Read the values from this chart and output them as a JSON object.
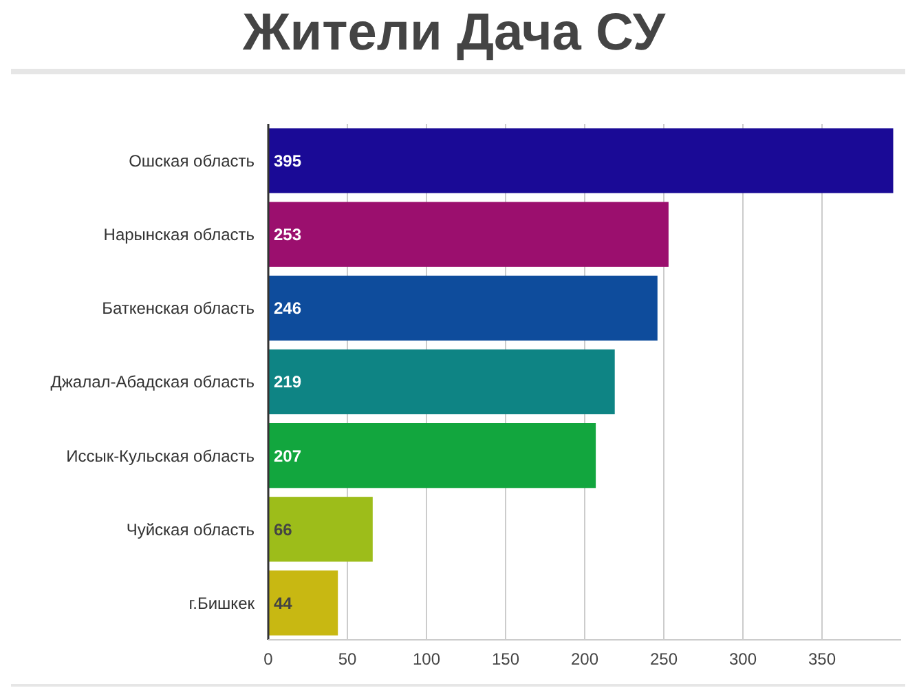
{
  "chart_data": {
    "type": "bar",
    "orientation": "horizontal",
    "title": "Жители Дача СУ",
    "categories": [
      "Ошская область",
      "Нарынская область",
      "Баткенская область",
      "Джалал-Абадская область",
      "Иссык-Кульская область",
      "Чуйская область",
      "г.Бишкек"
    ],
    "values": [
      395,
      253,
      246,
      219,
      207,
      66,
      44
    ],
    "colors": [
      "#1a0a96",
      "#9b0f6e",
      "#0e4c9c",
      "#0e8484",
      "#12a63e",
      "#9dbd1a",
      "#c8b812"
    ],
    "xlim": [
      0,
      400
    ],
    "xticks": [
      0,
      50,
      100,
      150,
      200,
      250,
      300,
      350
    ],
    "grid": "x",
    "data_labels": true
  }
}
